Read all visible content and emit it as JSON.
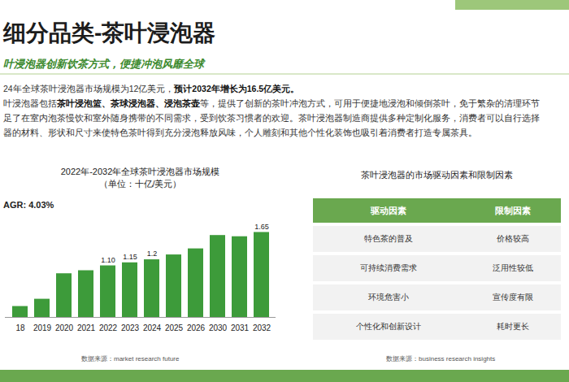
{
  "slide": {
    "title": "细分品类-茶叶浸泡器",
    "subtitle": "叶浸泡器创新饮茶方式，便捷冲泡风靡全球",
    "paragraph": [
      [
        "24年全球茶叶浸泡器市场规模为12亿美元，",
        "预计2032年增长为16.5亿美元。"
      ],
      [
        "叶浸泡器包括",
        "茶叶浸泡篮、茶球浸泡器、浸泡茶壶",
        "等，提供了创新的茶叶冲泡方式，可用于便捷地浸泡和倾倒茶叶，免于繁杂的清理环节"
      ],
      [
        "足了在室内泡茶慢饮和室外随身携带的不同需求，受到饮茶习惯者的欢迎。茶叶浸泡器制造商提供多种定制化服务，消费者可以自行选择"
      ],
      [
        "器的材料、形状和尺寸来使特色茶叶得到充分浸泡释放风味，个人雕刻和其他个性化装饰也吸引着消费者打造专属茶具。"
      ]
    ],
    "table": {
      "title": "茶叶浸泡器的市场驱动因素和限制因素",
      "header": [
        "驱动因素",
        "限制因素"
      ],
      "rows": [
        [
          "特色茶的普及",
          "价格较高"
        ],
        [
          "可持续消费需求",
          "泛用性较低"
        ],
        [
          "环境危害小",
          "宣传度有限"
        ],
        [
          "个性化和创新设计",
          "耗时更长"
        ]
      ],
      "source": "数据来源：business research insights"
    }
  },
  "chart_data": {
    "type": "bar",
    "title": "2022年-2032年全球茶叶浸泡器市场规模",
    "subtitle": "（单位：十亿/美元）",
    "annotation": "AGR: 4.03%",
    "source": "数据来源：market research future",
    "categories": [
      "18",
      "2019",
      "2020",
      "2021",
      "2022",
      "2023",
      "2024",
      "2025",
      "2026",
      "2030",
      "2031",
      "2032"
    ],
    "values": [
      0.43,
      0.55,
      0.97,
      1.02,
      1.1,
      1.15,
      1.2,
      1.28,
      1.38,
      1.6,
      1.58,
      1.65
    ],
    "value_labels": [
      null,
      null,
      null,
      null,
      "1.10",
      "1.15",
      "1.2",
      null,
      null,
      null,
      null,
      "1.65"
    ],
    "data_labels": true,
    "color": "#3d9b3a",
    "ylim": [
      0.25,
      1.75
    ],
    "yticks": [],
    "tick_labels": "x",
    "grid": false
  }
}
